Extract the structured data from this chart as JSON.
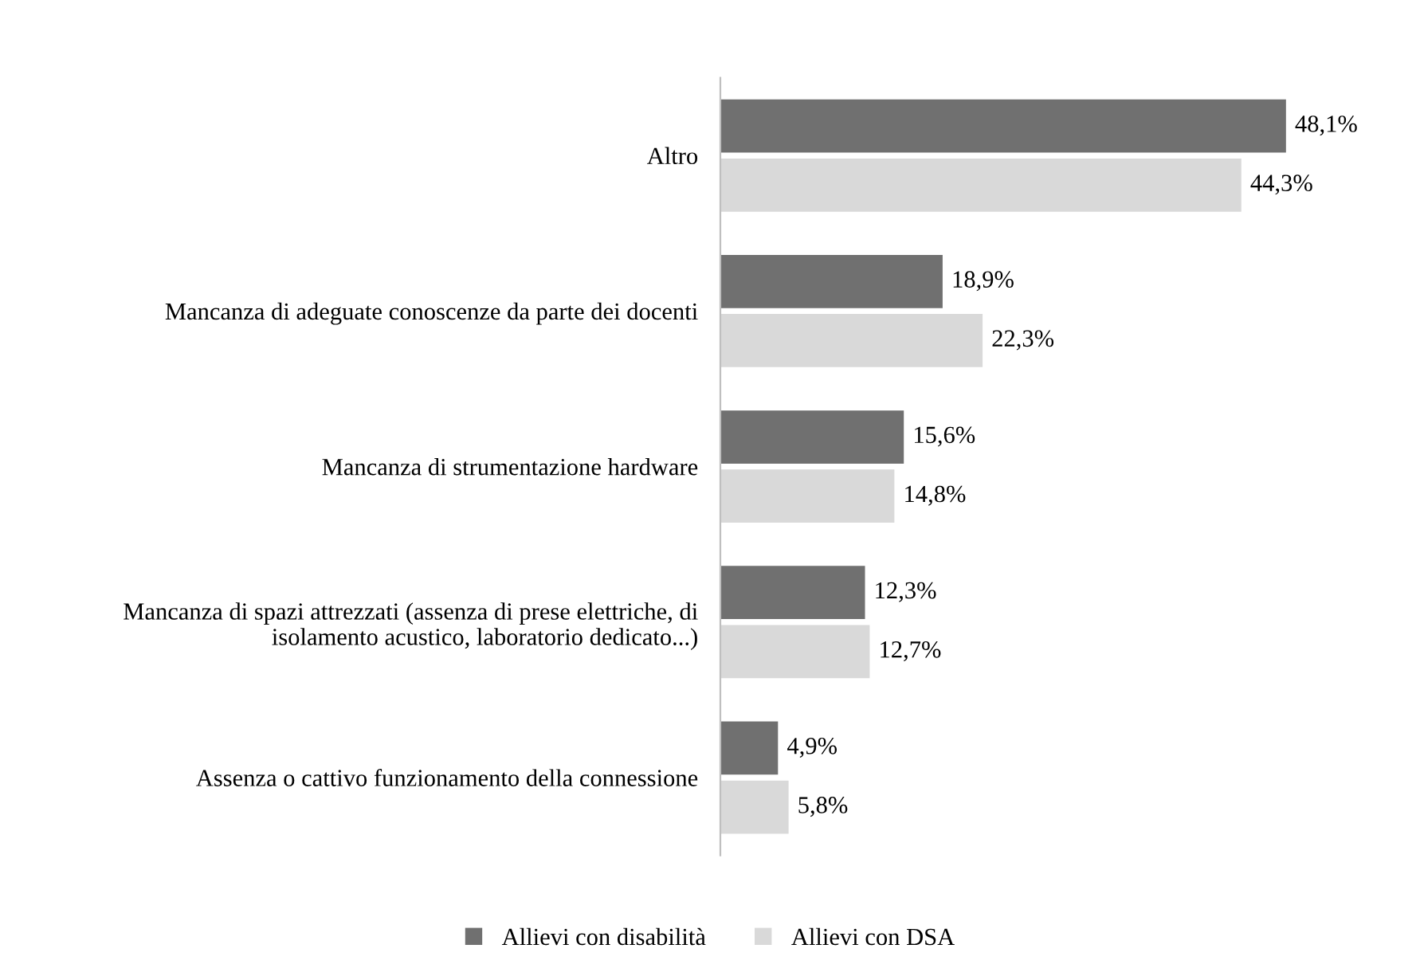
{
  "chart_data": {
    "type": "bar",
    "orientation": "horizontal",
    "categories": [
      "Altro",
      "Mancanza di adeguate conoscenze da parte dei docenti",
      "Mancanza di strumentazione hardware",
      "Mancanza di spazi attrezzati (assenza di prese elettriche, di\nisolamento acustico, laboratorio dedicato...)",
      "Assenza o cattivo funzionamento della connessione"
    ],
    "series": [
      {
        "name": "Allievi con disabilità",
        "color": "#707070",
        "values": [
          48.1,
          18.9,
          15.6,
          12.3,
          4.9
        ],
        "value_labels": [
          "48,1%",
          "18,9%",
          "15,6%",
          "12,3%",
          "4,9%"
        ]
      },
      {
        "name": "Allievi con DSA",
        "color": "#d9d9d9",
        "values": [
          44.3,
          22.3,
          14.8,
          12.7,
          5.8
        ],
        "value_labels": [
          "44,3%",
          "22,3%",
          "14,8%",
          "12,7%",
          "5,8%"
        ]
      }
    ],
    "legend": "bottom"
  }
}
